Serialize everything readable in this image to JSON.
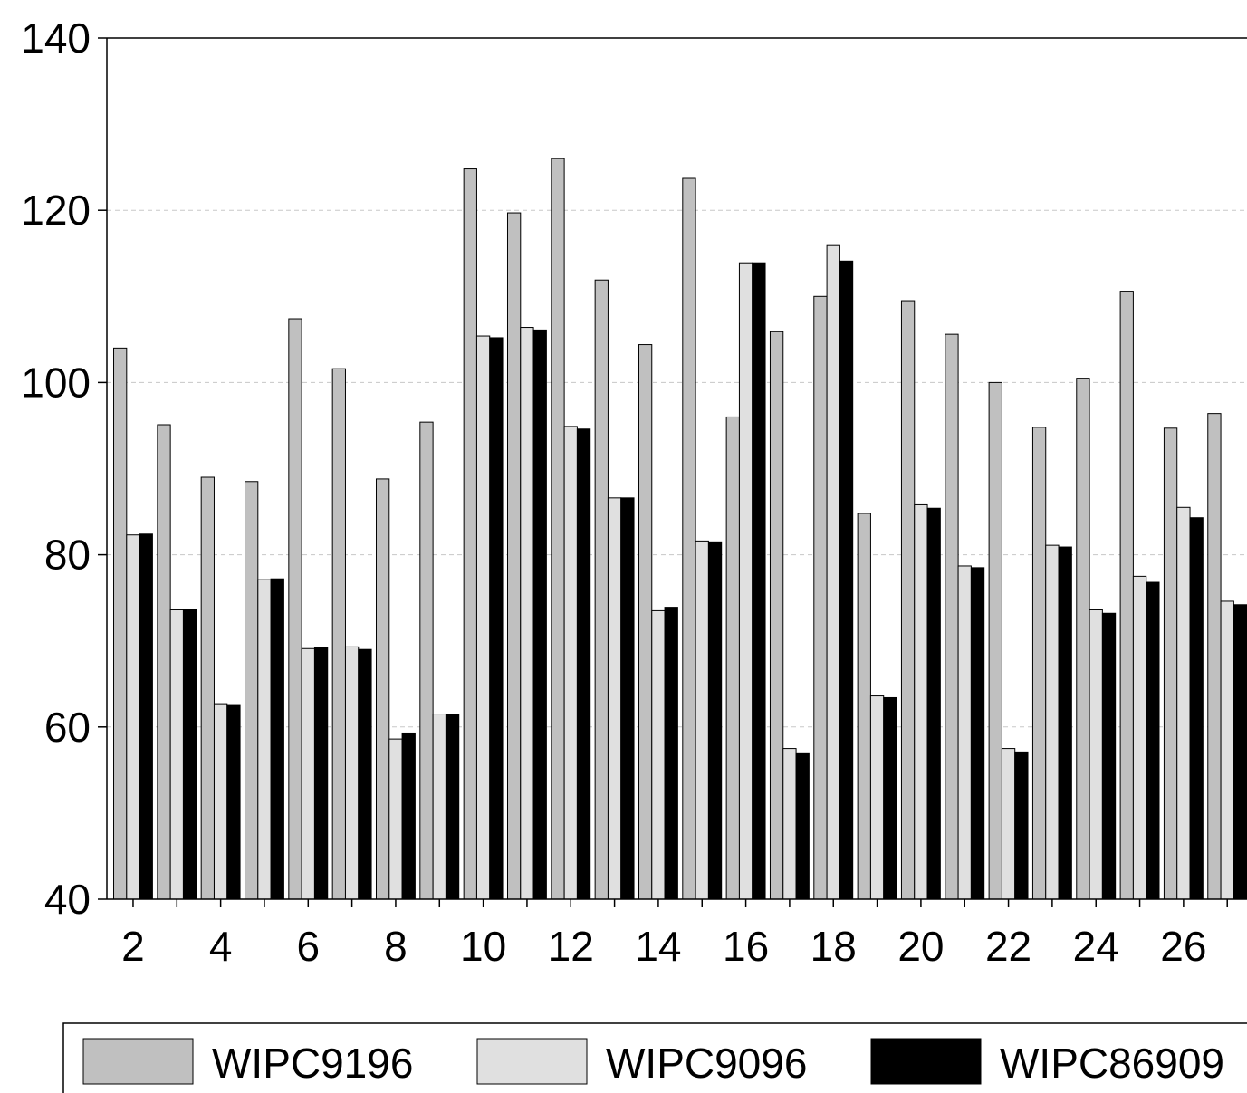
{
  "chart_data": {
    "type": "bar",
    "categories": [
      "2",
      null,
      "4",
      null,
      "6",
      null,
      "8",
      null,
      "10",
      null,
      "12",
      null,
      "14",
      null,
      "16",
      null,
      "18",
      null,
      "20",
      null,
      "22",
      null,
      "24",
      null,
      "26",
      null
    ],
    "series": [
      {
        "name": "WIPC9196",
        "color": "#c0c0c0",
        "values": [
          104.0,
          95.1,
          89.0,
          88.5,
          107.4,
          101.6,
          88.8,
          95.4,
          124.8,
          119.7,
          126.0,
          111.9,
          104.4,
          123.7,
          96.0,
          105.9,
          110.0,
          84.8,
          109.5,
          105.6,
          100.0,
          94.8,
          100.5,
          110.6,
          94.7,
          96.4
        ]
      },
      {
        "name": "WIPC9096",
        "color": "#e0e0e0",
        "values": [
          82.3,
          73.6,
          62.7,
          77.1,
          69.1,
          69.3,
          58.6,
          61.5,
          105.4,
          106.4,
          94.9,
          86.6,
          73.5,
          81.6,
          113.9,
          57.5,
          115.9,
          63.6,
          85.8,
          78.7,
          57.5,
          81.1,
          73.6,
          77.5,
          85.5,
          74.6
        ]
      },
      {
        "name": "WIPC86909",
        "color": "#000000",
        "values": [
          82.4,
          73.6,
          62.6,
          77.2,
          69.2,
          69.0,
          59.3,
          61.5,
          105.2,
          106.1,
          94.6,
          86.6,
          73.9,
          81.5,
          113.9,
          57.0,
          114.1,
          63.4,
          85.4,
          78.5,
          57.1,
          80.9,
          73.2,
          76.8,
          84.3,
          74.2
        ]
      }
    ],
    "ylim": [
      40,
      140
    ],
    "yticks": [
      40,
      60,
      80,
      100,
      120,
      140
    ],
    "grid": true,
    "legend": "bottom"
  }
}
